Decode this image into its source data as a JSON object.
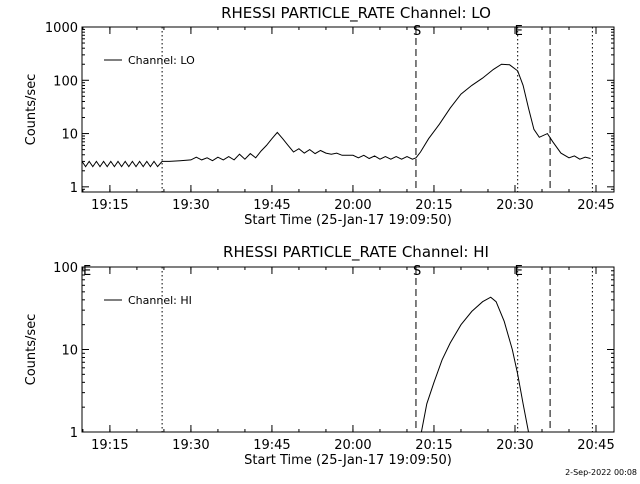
{
  "footer": {
    "date": "2-Sep-2022 00:08"
  },
  "chart_data": [
    {
      "type": "line",
      "title": "RHESSI PARTICLE_RATE Channel: LO",
      "xlabel": "Start Time (25-Jan-17 19:09:50)",
      "ylabel": "Counts/sec",
      "yscale": "log",
      "xlim": [
        "19:09:50",
        "20:48:20"
      ],
      "ylim": [
        0.8,
        1000
      ],
      "x_ticks": [
        "19:15",
        "19:30",
        "19:45",
        "20:00",
        "20:15",
        "20:30",
        "20:45"
      ],
      "y_ticks": [
        "1",
        "10",
        "100",
        "1000"
      ],
      "legend": {
        "position": "top-left",
        "entries": [
          "Channel: LO"
        ]
      },
      "markers": [
        {
          "time": "19:24:40",
          "style": "dotted",
          "label": ""
        },
        {
          "time": "20:11:40",
          "style": "dashed",
          "label": "S"
        },
        {
          "time": "20:30:30",
          "style": "dotted",
          "label": "E"
        },
        {
          "time": "20:36:30",
          "style": "dashed",
          "label": ""
        },
        {
          "time": "20:44:20",
          "style": "dotted",
          "label": ""
        }
      ],
      "series": [
        {
          "name": "Channel: LO",
          "color": "#000000",
          "points": [
            [
              "19:09:50",
              3
            ],
            [
              "19:10:30",
              2.4
            ],
            [
              "19:11:10",
              3
            ],
            [
              "19:11:50",
              2.4
            ],
            [
              "19:12:30",
              3
            ],
            [
              "19:13:10",
              2.4
            ],
            [
              "19:13:50",
              3
            ],
            [
              "19:14:30",
              2.4
            ],
            [
              "19:15:10",
              3
            ],
            [
              "19:15:50",
              2.4
            ],
            [
              "19:16:30",
              3
            ],
            [
              "19:17:10",
              2.4
            ],
            [
              "19:17:50",
              3
            ],
            [
              "19:18:30",
              2.4
            ],
            [
              "19:19:10",
              3
            ],
            [
              "19:19:50",
              2.4
            ],
            [
              "19:20:30",
              3
            ],
            [
              "19:21:10",
              2.4
            ],
            [
              "19:21:50",
              3
            ],
            [
              "19:22:30",
              2.4
            ],
            [
              "19:23:10",
              3
            ],
            [
              "19:23:50",
              2.4
            ],
            [
              "19:24:40",
              3
            ],
            [
              "19:26:00",
              3
            ],
            [
              "19:28:00",
              3.1
            ],
            [
              "19:30:00",
              3.2
            ],
            [
              "19:31:00",
              3.6
            ],
            [
              "19:32:00",
              3.2
            ],
            [
              "19:33:00",
              3.5
            ],
            [
              "19:34:00",
              3.1
            ],
            [
              "19:35:00",
              3.6
            ],
            [
              "19:36:00",
              3.2
            ],
            [
              "19:37:00",
              3.7
            ],
            [
              "19:38:00",
              3.2
            ],
            [
              "19:39:00",
              4.1
            ],
            [
              "19:40:00",
              3.3
            ],
            [
              "19:41:00",
              4.2
            ],
            [
              "19:42:00",
              3.5
            ],
            [
              "19:43:00",
              4.7
            ],
            [
              "19:44:00",
              6
            ],
            [
              "19:45:00",
              8
            ],
            [
              "19:46:00",
              10.5
            ],
            [
              "19:47:00",
              8
            ],
            [
              "19:48:00",
              6
            ],
            [
              "19:49:00",
              4.5
            ],
            [
              "19:50:00",
              5.2
            ],
            [
              "19:51:00",
              4.3
            ],
            [
              "19:52:00",
              5
            ],
            [
              "19:53:00",
              4.2
            ],
            [
              "19:54:00",
              4.8
            ],
            [
              "19:55:00",
              4.3
            ],
            [
              "19:56:00",
              4.1
            ],
            [
              "19:57:00",
              4.3
            ],
            [
              "19:58:00",
              3.9
            ],
            [
              "20:00:00",
              3.9
            ],
            [
              "20:01:00",
              3.5
            ],
            [
              "20:02:00",
              3.9
            ],
            [
              "20:03:00",
              3.4
            ],
            [
              "20:04:00",
              3.8
            ],
            [
              "20:05:00",
              3.3
            ],
            [
              "20:06:00",
              3.7
            ],
            [
              "20:07:00",
              3.3
            ],
            [
              "20:08:00",
              3.7
            ],
            [
              "20:09:00",
              3.3
            ],
            [
              "20:10:00",
              3.7
            ],
            [
              "20:11:00",
              3.3
            ],
            [
              "20:11:40",
              3.5
            ],
            [
              "20:12:30",
              4.5
            ],
            [
              "20:14:00",
              8
            ],
            [
              "20:16:00",
              15
            ],
            [
              "20:18:00",
              30
            ],
            [
              "20:20:00",
              55
            ],
            [
              "20:22:00",
              80
            ],
            [
              "20:24:00",
              110
            ],
            [
              "20:26:00",
              160
            ],
            [
              "20:27:30",
              200
            ],
            [
              "20:29:00",
              195
            ],
            [
              "20:30:30",
              150
            ],
            [
              "20:31:30",
              80
            ],
            [
              "20:32:30",
              30
            ],
            [
              "20:33:30",
              12
            ],
            [
              "20:34:30",
              8.5
            ],
            [
              "20:36:00",
              10
            ],
            [
              "20:37:00",
              7
            ],
            [
              "20:38:30",
              4.3
            ],
            [
              "20:40:00",
              3.5
            ],
            [
              "20:41:00",
              3.8
            ],
            [
              "20:42:00",
              3.3
            ],
            [
              "20:43:00",
              3.6
            ],
            [
              "20:44:00",
              3.4
            ]
          ]
        }
      ]
    },
    {
      "type": "line",
      "title": "RHESSI PARTICLE_RATE Channel: HI",
      "xlabel": "Start Time (25-Jan-17 19:09:50)",
      "ylabel": "Counts/sec",
      "yscale": "log",
      "xlim": [
        "19:09:50",
        "20:48:20"
      ],
      "ylim": [
        1,
        100
      ],
      "x_ticks": [
        "19:15",
        "19:30",
        "19:45",
        "20:00",
        "20:15",
        "20:30",
        "20:45"
      ],
      "y_ticks": [
        "1",
        "10",
        "100"
      ],
      "legend": {
        "position": "top-left",
        "entries": [
          "Channel: HI"
        ]
      },
      "markers": [
        {
          "time": "19:24:40",
          "style": "dotted",
          "label": ""
        },
        {
          "time": "20:11:40",
          "style": "dashed",
          "label": "S"
        },
        {
          "time": "20:30:30",
          "style": "dotted",
          "label": "E"
        },
        {
          "time": "20:36:30",
          "style": "dashed",
          "label": ""
        },
        {
          "time": "20:44:20",
          "style": "dotted",
          "label": ""
        }
      ],
      "corner_label": "E",
      "series": [
        {
          "name": "Channel: HI",
          "color": "#000000",
          "points": [
            [
              "20:12:40",
              1
            ],
            [
              "20:13:40",
              2.2
            ],
            [
              "20:15:00",
              4
            ],
            [
              "20:16:30",
              7.5
            ],
            [
              "20:18:00",
              12
            ],
            [
              "20:20:00",
              20
            ],
            [
              "20:22:00",
              29
            ],
            [
              "20:24:00",
              38
            ],
            [
              "20:25:30",
              43
            ],
            [
              "20:26:30",
              38
            ],
            [
              "20:28:00",
              22
            ],
            [
              "20:29:30",
              10
            ],
            [
              "20:30:30",
              5
            ],
            [
              "20:31:30",
              2.2
            ],
            [
              "20:32:30",
              1
            ]
          ]
        }
      ]
    }
  ]
}
